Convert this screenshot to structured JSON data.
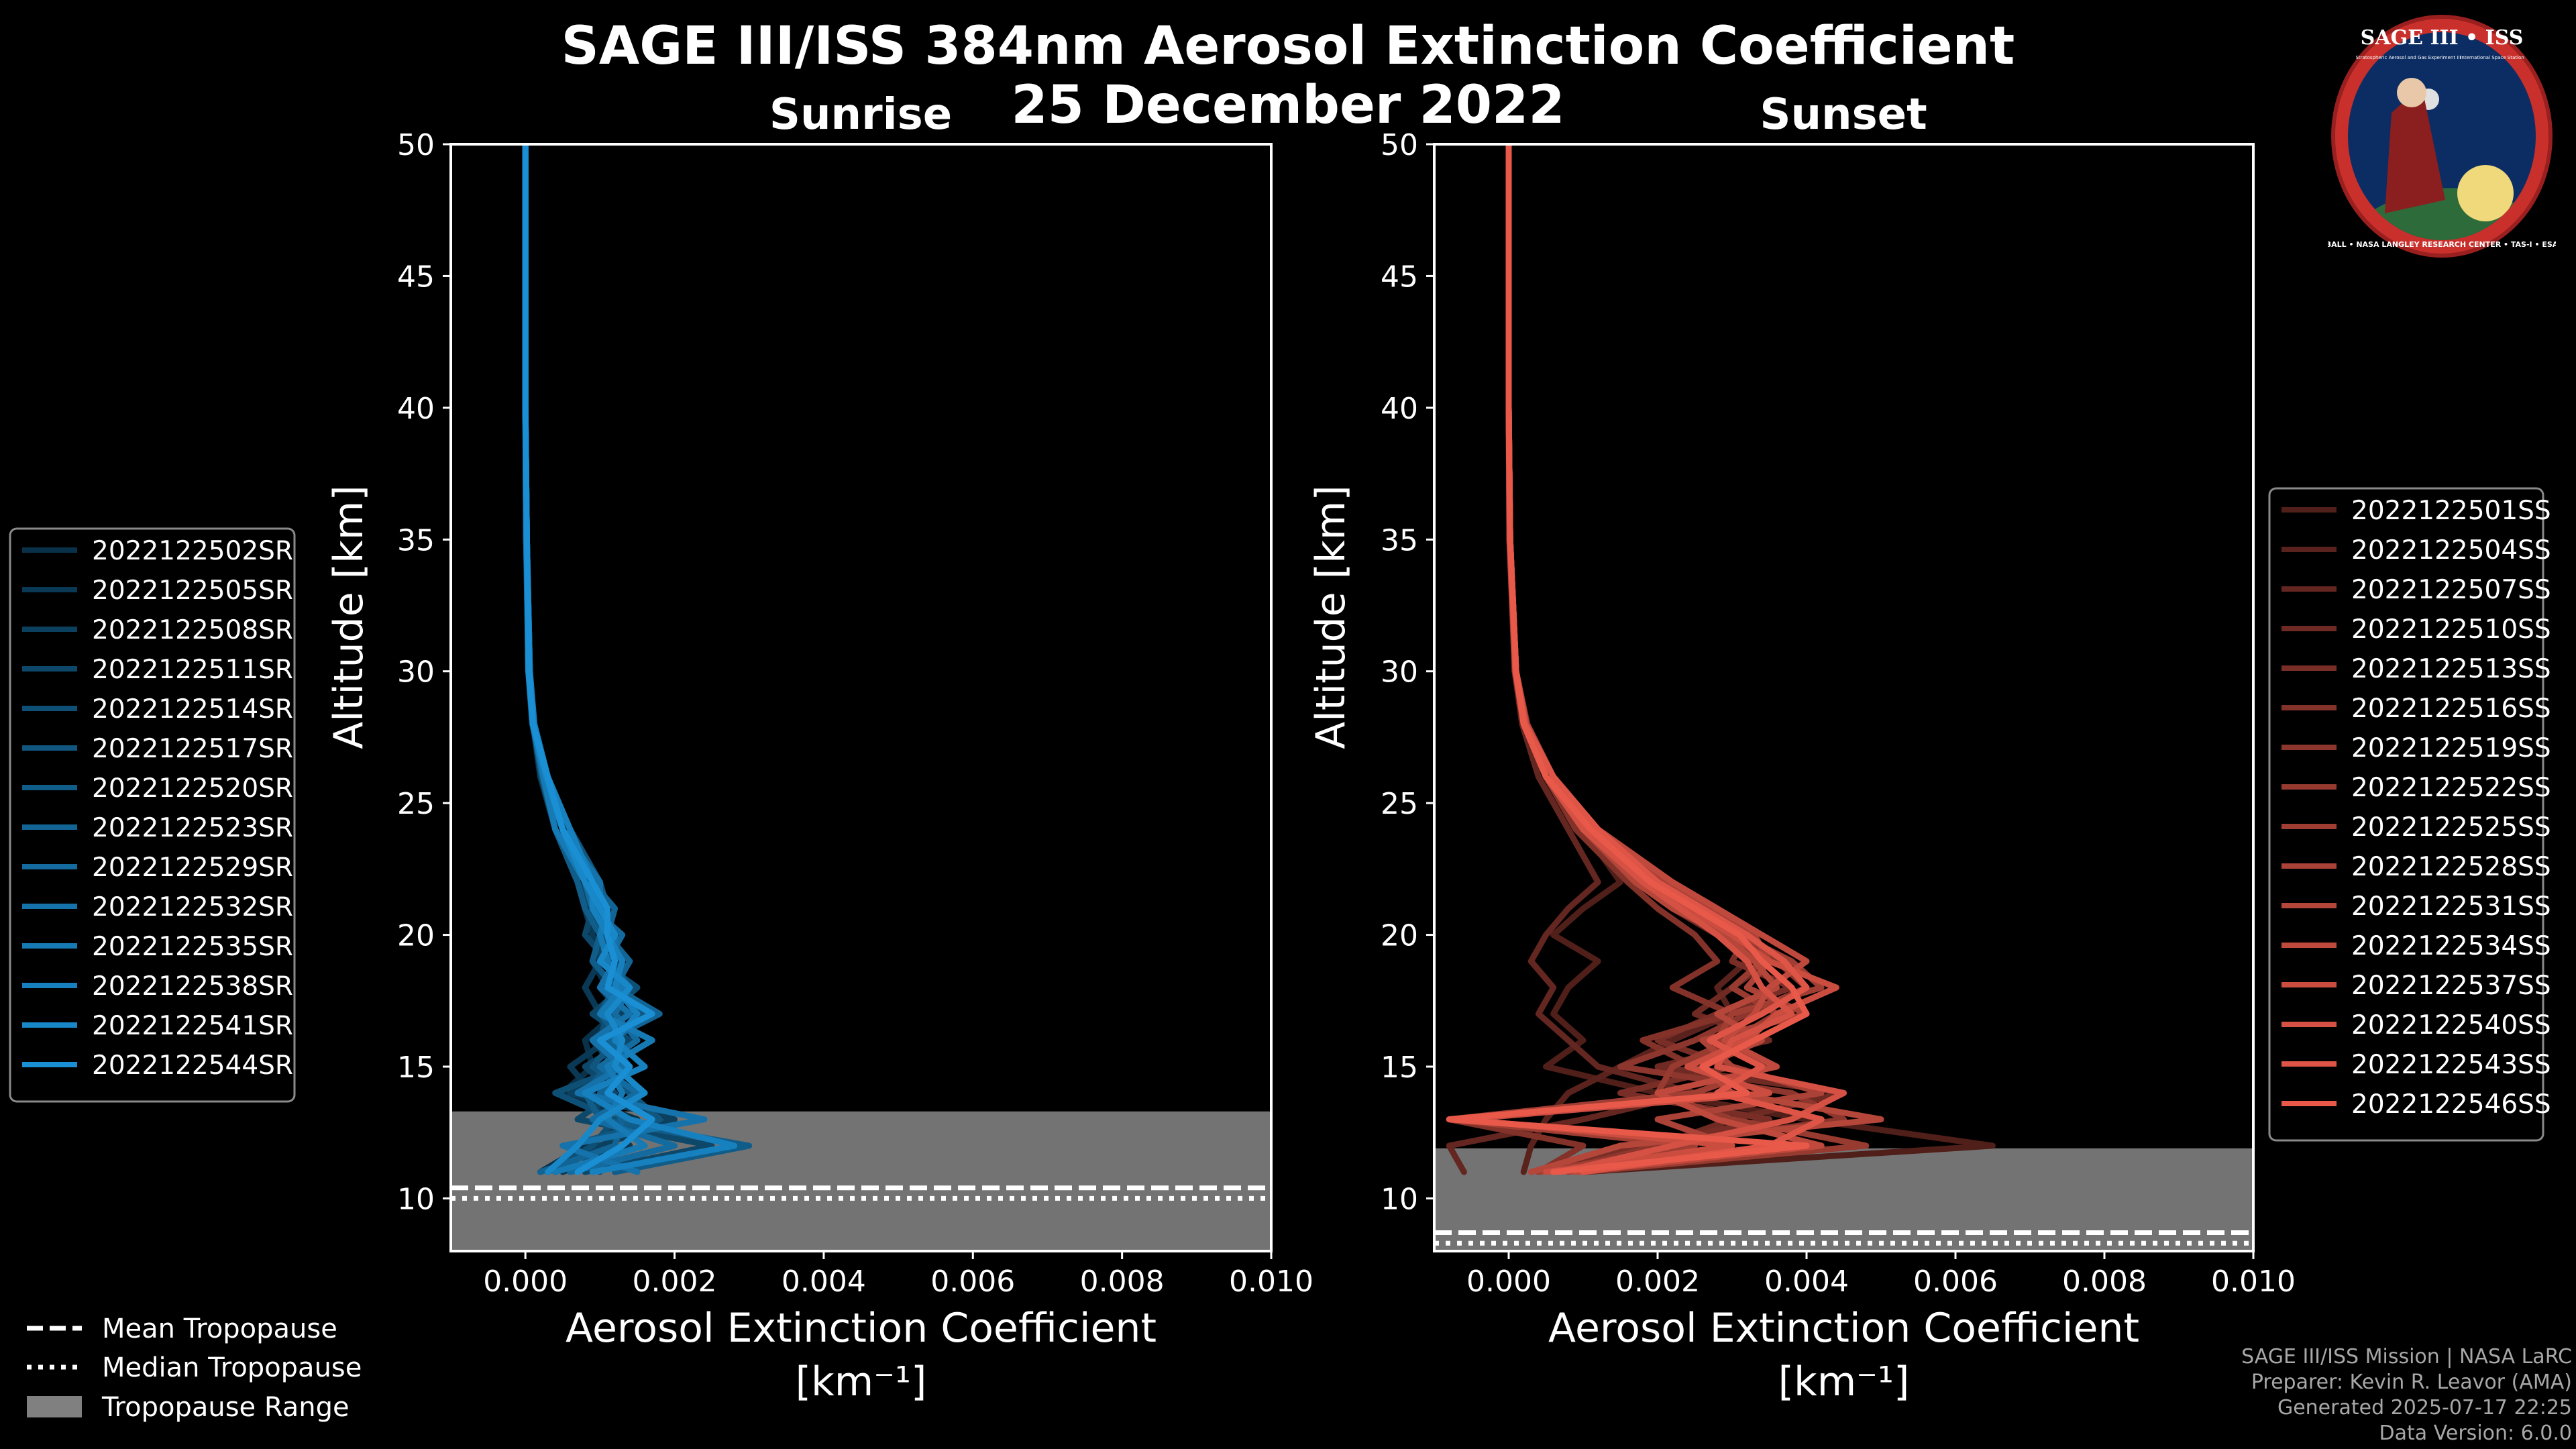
{
  "page": {
    "title_line1": "SAGE III/ISS 384nm Aerosol Extinction Coefficient",
    "title_line2": "25 December 2022"
  },
  "footer": {
    "line1": "SAGE III/ISS Mission | NASA LaRC",
    "line2": "Preparer: Kevin R. Leavor (AMA)",
    "line3": "Generated 2025-07-17 22:25",
    "line4": "Data Version: 6.0.0"
  },
  "logo": {
    "title": "SAGE III • ISS",
    "text_left": "Stratospheric Aerosol and Gas Experiment III",
    "text_right": "International Space Station",
    "ring": "BALL • NASA LANGLEY RESEARCH CENTER • TAS-I • ESA"
  },
  "colors": {
    "sunrise": "#1a8fd4",
    "sunset": "#e8594a",
    "tropopause_range": "#808080",
    "background": "#000000"
  },
  "chart_data": [
    {
      "type": "line",
      "title": "Sunrise",
      "xlabel": "Aerosol Extinction Coefficient",
      "xunits": "[km⁻¹]",
      "ylabel": "Altitude [km]",
      "xlim": [
        -0.001,
        0.01
      ],
      "ylim": [
        8,
        50
      ],
      "xticks": [
        0.0,
        0.002,
        0.004,
        0.006,
        0.008,
        0.01
      ],
      "xtick_labels": [
        "0.000",
        "0.002",
        "0.004",
        "0.006",
        "0.008",
        "0.010"
      ],
      "yticks": [
        10,
        15,
        20,
        25,
        30,
        35,
        40,
        45,
        50
      ],
      "tropopause": {
        "mean": 10.4,
        "median": 10.0,
        "range": [
          8,
          13.3
        ]
      },
      "series_names": [
        "2022122502SR",
        "2022122505SR",
        "2022122508SR",
        "2022122511SR",
        "2022122514SR",
        "2022122517SR",
        "2022122520SR",
        "2022122523SR",
        "2022122529SR",
        "2022122532SR",
        "2022122535SR",
        "2022122538SR",
        "2022122541SR",
        "2022122544SR"
      ],
      "altitudes": [
        50,
        45,
        40,
        35,
        30,
        28,
        26,
        24,
        22,
        21,
        20,
        19,
        18,
        17,
        16,
        15,
        14,
        13,
        12,
        11
      ],
      "series_values": [
        [
          0.0,
          0.0,
          0.0,
          2e-05,
          5e-05,
          0.0001,
          0.0003,
          0.0005,
          0.0008,
          0.0009,
          0.001,
          0.0009,
          0.0011,
          0.0012,
          0.0008,
          0.0009,
          0.0005,
          0.0015,
          0.0008,
          0.0002
        ],
        [
          0.0,
          0.0,
          0.0,
          2e-05,
          5e-05,
          0.0001,
          0.0002,
          0.0004,
          0.0007,
          0.0008,
          0.0009,
          0.001,
          0.0008,
          0.001,
          0.0011,
          0.0006,
          0.0009,
          0.0011,
          0.0014,
          0.0005
        ],
        [
          0.0,
          0.0,
          0.0,
          2e-05,
          6e-05,
          0.00012,
          0.0003,
          0.0006,
          0.0009,
          0.001,
          0.0011,
          0.0012,
          0.001,
          0.0013,
          0.0009,
          0.0012,
          0.0006,
          0.002,
          0.001,
          0.0004
        ],
        [
          0.0,
          0.0,
          0.0,
          1e-05,
          4e-05,
          9e-05,
          0.00025,
          0.0005,
          0.0007,
          0.0009,
          0.0008,
          0.0011,
          0.0013,
          0.0009,
          0.0014,
          0.0008,
          0.0012,
          0.0007,
          0.0025,
          0.0008
        ],
        [
          0.0,
          0.0,
          0.0,
          2e-05,
          5e-05,
          0.0001,
          0.0003,
          0.0005,
          0.0008,
          0.001,
          0.0012,
          0.001,
          0.0015,
          0.0011,
          0.001,
          0.0013,
          0.0004,
          0.0012,
          0.0009,
          0.0003
        ],
        [
          0.0,
          0.0,
          0.0,
          2e-05,
          6e-05,
          0.00011,
          0.00028,
          0.0006,
          0.001,
          0.0011,
          0.001,
          0.0013,
          0.0011,
          0.0016,
          0.0012,
          0.0009,
          0.0014,
          0.0018,
          0.0006,
          0.001
        ],
        [
          0.0,
          0.0,
          0.0,
          1e-05,
          4e-05,
          0.0001,
          0.00022,
          0.0004,
          0.0007,
          0.0008,
          0.001,
          0.0009,
          0.0012,
          0.001,
          0.0013,
          0.0011,
          0.0008,
          0.001,
          0.003,
          0.0012
        ],
        [
          0.0,
          0.0,
          0.0,
          2e-05,
          5e-05,
          0.00012,
          0.0003,
          0.0006,
          0.0009,
          0.0012,
          0.0011,
          0.0014,
          0.0012,
          0.0018,
          0.0011,
          0.0014,
          0.001,
          0.0013,
          0.0012,
          0.0002
        ],
        [
          0.0,
          0.0,
          0.0,
          2e-05,
          6e-05,
          0.0001,
          0.00026,
          0.0005,
          0.0008,
          0.0009,
          0.0013,
          0.0011,
          0.0014,
          0.0012,
          0.0015,
          0.001,
          0.0015,
          0.0009,
          0.002,
          0.0006
        ],
        [
          0.0,
          0.0,
          0.0,
          1e-05,
          5e-05,
          0.00011,
          0.0003,
          0.0005,
          0.001,
          0.001,
          0.0012,
          0.0012,
          0.001,
          0.0014,
          0.0009,
          0.0013,
          0.0007,
          0.0024,
          0.0005,
          0.0015
        ],
        [
          0.0,
          0.0,
          0.0,
          2e-05,
          5e-05,
          0.0001,
          0.00024,
          0.0004,
          0.0008,
          0.0011,
          0.001,
          0.0011,
          0.0013,
          0.001,
          0.0017,
          0.0011,
          0.0013,
          0.0011,
          0.0016,
          0.0004
        ],
        [
          0.0,
          0.0,
          0.0,
          2e-05,
          6e-05,
          0.00012,
          0.0003,
          0.0006,
          0.0009,
          0.0009,
          0.0011,
          0.0013,
          0.0012,
          0.0015,
          0.0012,
          0.0016,
          0.0008,
          0.0014,
          0.0028,
          0.0009
        ],
        [
          0.0,
          0.0,
          0.0,
          2e-05,
          4e-05,
          0.0001,
          0.00028,
          0.0005,
          0.0008,
          0.001,
          0.0012,
          0.001,
          0.0014,
          0.0011,
          0.0013,
          0.0012,
          0.0016,
          0.001,
          0.0007,
          0.0003
        ],
        [
          0.0,
          0.0,
          0.0,
          2e-05,
          5e-05,
          0.0001,
          0.0003,
          0.0005,
          0.0009,
          0.0011,
          0.0011,
          0.0012,
          0.0011,
          0.0017,
          0.001,
          0.0014,
          0.0011,
          0.0017,
          0.0013,
          0.0007
        ]
      ]
    },
    {
      "type": "line",
      "title": "Sunset",
      "xlabel": "Aerosol Extinction Coefficient",
      "xunits": "[km⁻¹]",
      "ylabel": "Altitude [km]",
      "xlim": [
        -0.001,
        0.01
      ],
      "ylim": [
        8,
        50
      ],
      "xticks": [
        0.0,
        0.002,
        0.004,
        0.006,
        0.008,
        0.01
      ],
      "xtick_labels": [
        "0.000",
        "0.002",
        "0.004",
        "0.006",
        "0.008",
        "0.010"
      ],
      "yticks": [
        10,
        15,
        20,
        25,
        30,
        35,
        40,
        45,
        50
      ],
      "tropopause": {
        "mean": 8.7,
        "median": 8.3,
        "range": [
          8,
          11.9
        ]
      },
      "series_names": [
        "2022122501SS",
        "2022122504SS",
        "2022122507SS",
        "2022122510SS",
        "2022122513SS",
        "2022122516SS",
        "2022122519SS",
        "2022122522SS",
        "2022122525SS",
        "2022122528SS",
        "2022122531SS",
        "2022122534SS",
        "2022122537SS",
        "2022122540SS",
        "2022122543SS",
        "2022122546SS"
      ],
      "altitudes": [
        50,
        45,
        40,
        35,
        30,
        28,
        26,
        24,
        22,
        21,
        20,
        19,
        18,
        17,
        16,
        15,
        14,
        13,
        12,
        11
      ],
      "series_values": [
        [
          0.0,
          0.0,
          0.0,
          2e-05,
          0.0001,
          0.0002,
          0.0005,
          0.001,
          0.0015,
          0.001,
          0.0006,
          0.0012,
          0.0008,
          0.0006,
          0.001,
          0.0005,
          0.002,
          0.004,
          0.0065,
          0.001
        ],
        [
          0.0,
          0.0,
          0.0,
          2e-05,
          0.0001,
          0.0002,
          0.0006,
          0.0012,
          0.002,
          0.0025,
          0.003,
          0.0032,
          0.0028,
          0.003,
          0.0022,
          0.0015,
          0.0008,
          0.0005,
          0.0003,
          0.0002
        ],
        [
          0.0,
          0.0,
          0.0,
          2e-05,
          8e-05,
          0.00018,
          0.0004,
          0.0008,
          0.0012,
          0.0008,
          0.0005,
          0.0003,
          0.0006,
          0.0004,
          0.0008,
          0.0012,
          0.0025,
          0.001,
          -0.0008,
          -0.0006
        ],
        [
          0.0,
          0.0,
          0.0,
          2e-05,
          0.0001,
          0.0002,
          0.0005,
          0.001,
          0.0018,
          0.0022,
          0.0028,
          0.0035,
          0.003,
          0.0025,
          0.0035,
          0.002,
          0.0045,
          0.003,
          0.002,
          0.0008
        ],
        [
          0.0,
          0.0,
          0.0,
          2e-05,
          0.0001,
          0.00025,
          0.0006,
          0.0012,
          0.0022,
          0.0028,
          0.0032,
          0.003,
          0.0038,
          0.0028,
          0.002,
          0.003,
          0.0015,
          0.0035,
          0.0018,
          0.0005
        ],
        [
          0.0,
          0.0,
          0.0,
          1e-05,
          8e-05,
          0.0002,
          0.0005,
          0.0009,
          0.0016,
          0.002,
          0.0025,
          0.0028,
          0.0022,
          0.003,
          0.0018,
          0.0025,
          0.003,
          -0.0008,
          0.001,
          0.0004
        ],
        [
          0.0,
          0.0,
          0.0,
          2e-05,
          0.0001,
          0.0002,
          0.0006,
          0.0011,
          0.002,
          0.0026,
          0.003,
          0.0036,
          0.004,
          0.0032,
          0.0025,
          0.0015,
          0.0038,
          0.0045,
          0.002,
          0.0006
        ],
        [
          0.0,
          0.0,
          0.0,
          2e-05,
          9e-05,
          0.0002,
          0.0005,
          0.001,
          0.0018,
          0.0024,
          0.003,
          0.0034,
          0.003,
          0.0036,
          0.003,
          0.0022,
          0.002,
          0.003,
          0.0048,
          0.001
        ],
        [
          0.0,
          0.0,
          0.0,
          2e-05,
          0.0001,
          0.00022,
          0.0005,
          0.0011,
          0.0019,
          0.0025,
          0.0031,
          0.0038,
          0.0042,
          0.003,
          0.0028,
          0.0035,
          0.0025,
          -0.0008,
          0.0025,
          0.0004
        ],
        [
          0.0,
          0.0,
          0.0,
          2e-05,
          0.0001,
          0.0002,
          0.0006,
          0.0012,
          0.0021,
          0.0027,
          0.0033,
          0.0035,
          0.0032,
          0.004,
          0.0026,
          0.003,
          0.0042,
          0.002,
          0.003,
          0.0008
        ],
        [
          0.0,
          0.0,
          0.0,
          1e-05,
          9e-05,
          0.0002,
          0.0005,
          0.001,
          0.0017,
          0.0022,
          0.0029,
          0.0033,
          0.0036,
          0.0028,
          0.0034,
          0.0026,
          0.003,
          0.005,
          0.0015,
          0.0003
        ],
        [
          0.0,
          0.0,
          0.0,
          2e-05,
          0.0001,
          0.00024,
          0.0006,
          0.0012,
          0.0022,
          0.0028,
          0.0034,
          0.004,
          0.0035,
          0.0033,
          0.0029,
          0.0036,
          0.002,
          0.0028,
          0.0042,
          0.0009
        ],
        [
          0.0,
          0.0,
          0.0,
          2e-05,
          0.0001,
          0.0002,
          0.0005,
          0.0011,
          0.0019,
          0.0024,
          0.003,
          0.0035,
          0.0044,
          0.0036,
          0.0032,
          0.0024,
          0.0035,
          -0.0006,
          0.003,
          0.0005
        ],
        [
          0.0,
          0.0,
          0.0,
          2e-05,
          9e-05,
          0.0002,
          0.0005,
          0.001,
          0.0018,
          0.0023,
          0.0028,
          0.0032,
          0.0034,
          0.0038,
          0.003,
          0.0028,
          0.0045,
          0.0038,
          0.0022,
          0.0007
        ],
        [
          0.0,
          0.0,
          0.0,
          2e-05,
          0.0001,
          0.00022,
          0.0006,
          0.0012,
          0.002,
          0.0026,
          0.0032,
          0.0037,
          0.004,
          0.0034,
          0.0027,
          0.0034,
          0.0028,
          0.0042,
          0.0035,
          0.001
        ],
        [
          0.0,
          0.0,
          0.0,
          2e-05,
          0.0001,
          0.0002,
          0.0005,
          0.0011,
          0.0019,
          0.0025,
          0.0031,
          0.0034,
          0.0038,
          0.004,
          0.0033,
          0.0026,
          0.0032,
          -0.0008,
          0.004,
          0.0006
        ]
      ]
    }
  ],
  "legend_bottom": {
    "mean": "Mean Tropopause",
    "median": "Median Tropopause",
    "range": "Tropopause Range"
  }
}
